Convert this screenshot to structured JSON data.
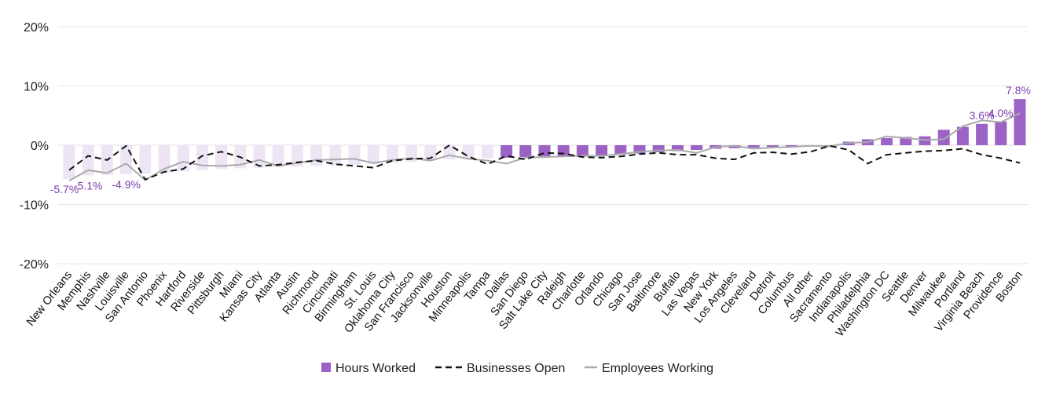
{
  "chart_data": {
    "type": "bar",
    "y_tick_labels": [
      "20%",
      "10%",
      "0%",
      "-10%",
      "-20%"
    ],
    "ylim": [
      -20,
      20
    ],
    "grid": true,
    "legend_position": "bottom",
    "categories": [
      "New Orleans",
      "Memphis",
      "Nashville",
      "Louisville",
      "San Antonio",
      "Phoenix",
      "Hartford",
      "Riverside",
      "Pittsburgh",
      "Miami",
      "Kansas City",
      "Atlanta",
      "Austin",
      "Richmond",
      "Cincinnati",
      "Birmingham",
      "St. Louis",
      "Oklahoma City",
      "San Francisco",
      "Jacksonville",
      "Houston",
      "Minneapolis",
      "Tampa",
      "Dallas",
      "San Diego",
      "Salt Lake City",
      "Raleigh",
      "Charlotte",
      "Orlando",
      "Chicago",
      "San Jose",
      "Baltimore",
      "Buffalo",
      "Las Vegas",
      "New York",
      "Los Angeles",
      "Cleveland",
      "Detroit",
      "Columbus",
      "All other",
      "Sacramento",
      "Indianapolis",
      "Philadelphia",
      "Washington DC",
      "Seattle",
      "Denver",
      "Milwaukee",
      "Portland",
      "Virginia Beach",
      "Providence",
      "Boston"
    ],
    "series": [
      {
        "name": "Hours Worked",
        "type": "bar",
        "values": [
          -5.7,
          -5.1,
          -5.0,
          -4.9,
          -4.8,
          -4.6,
          -4.4,
          -4.2,
          -4.0,
          -3.9,
          -3.8,
          -3.7,
          -3.6,
          -3.5,
          -3.4,
          -3.3,
          -3.2,
          -3.0,
          -2.8,
          -2.6,
          -2.4,
          -2.3,
          -2.2,
          -2.1,
          -2.0,
          -1.9,
          -1.8,
          -1.7,
          -1.7,
          -1.6,
          -1.4,
          -1.2,
          -1.0,
          -0.8,
          -0.6,
          -0.5,
          -0.4,
          -0.3,
          -0.2,
          -0.1,
          0.0,
          0.6,
          1.0,
          1.2,
          1.4,
          1.5,
          2.6,
          3.1,
          3.6,
          4.0,
          7.8
        ]
      },
      {
        "name": "Businesses Open",
        "type": "line",
        "values": [
          -4.2,
          -1.8,
          -2.5,
          -0.1,
          -5.8,
          -4.5,
          -4.0,
          -1.8,
          -1.1,
          -2.0,
          -3.5,
          -3.3,
          -2.9,
          -2.6,
          -3.2,
          -3.5,
          -3.8,
          -2.6,
          -2.3,
          -2.2,
          0.0,
          -1.9,
          -3.2,
          -1.8,
          -2.4,
          -1.3,
          -1.4,
          -2.0,
          -2.1,
          -1.9,
          -1.5,
          -1.3,
          -1.6,
          -1.6,
          -2.2,
          -2.4,
          -1.3,
          -1.2,
          -1.5,
          -1.1,
          -0.1,
          -0.8,
          -3.1,
          -1.6,
          -1.3,
          -1.0,
          -0.9,
          -0.6,
          -1.6,
          -2.2,
          -3.0
        ]
      },
      {
        "name": "Employees Working",
        "type": "line",
        "values": [
          -6.0,
          -4.2,
          -4.7,
          -3.1,
          -5.9,
          -4.0,
          -2.8,
          -3.4,
          -3.5,
          -3.3,
          -2.5,
          -3.5,
          -3.0,
          -2.5,
          -2.4,
          -2.3,
          -3.0,
          -2.5,
          -2.2,
          -2.6,
          -1.7,
          -2.3,
          -2.6,
          -3.1,
          -2.1,
          -2.0,
          -1.9,
          -1.8,
          -1.8,
          -1.5,
          -1.1,
          -0.9,
          -0.8,
          -1.3,
          -0.3,
          -0.1,
          -0.6,
          -0.4,
          -0.3,
          -0.1,
          -0.2,
          0.4,
          0.5,
          1.5,
          1.2,
          0.9,
          1.0,
          3.2,
          4.2,
          3.9,
          5.4
        ]
      }
    ],
    "data_labels": [
      {
        "category": "New Orleans",
        "text": "-5.7%"
      },
      {
        "category": "Memphis",
        "text": "-5.1%"
      },
      {
        "category": "Louisville",
        "text": "-4.9%"
      },
      {
        "category": "Virginia Beach",
        "text": "3.6%"
      },
      {
        "category": "Providence",
        "text": "4.0%"
      },
      {
        "category": "Boston",
        "text": "7.8%"
      }
    ],
    "colors": {
      "bar_dark": "#9c63c6",
      "bar_light": "#ede5f4",
      "businesses_open": "#111111",
      "employees_working": "#aaaaaa",
      "data_label": "#7d3fb0",
      "grid": "#e3e3e3"
    }
  },
  "legend": {
    "hours_worked": "Hours Worked",
    "businesses_open": "Businesses Open",
    "employees_working": "Employees Working"
  }
}
